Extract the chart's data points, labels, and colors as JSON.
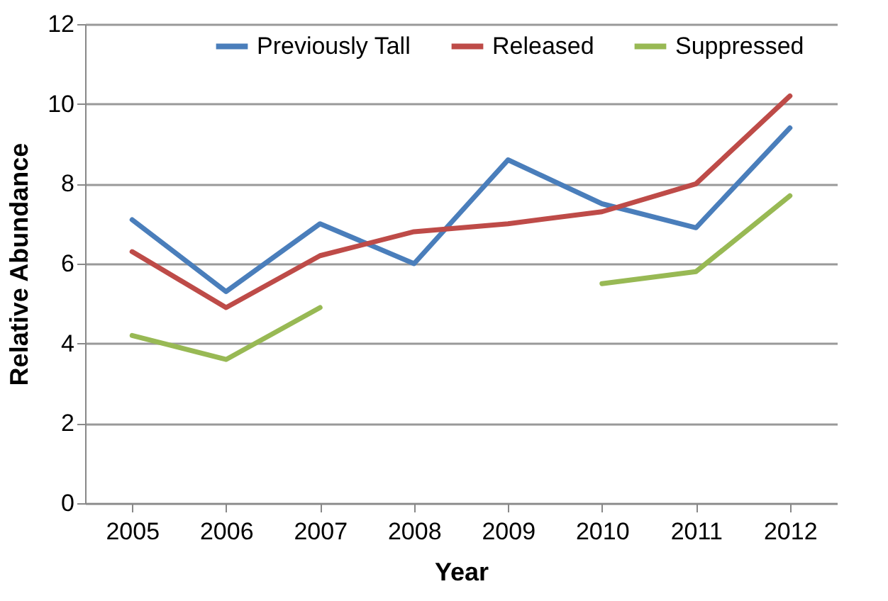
{
  "chart_data": {
    "type": "line",
    "xlabel": "Year",
    "ylabel": "Relative Abundance",
    "categories": [
      "2005",
      "2006",
      "2007",
      "2008",
      "2009",
      "2010",
      "2011",
      "2012"
    ],
    "series": [
      {
        "name": "Previously Tall",
        "color": "#4a7ebb",
        "values": [
          7.1,
          5.3,
          7.0,
          6.0,
          8.6,
          7.5,
          6.9,
          9.4
        ]
      },
      {
        "name": "Released",
        "color": "#be4b48",
        "values": [
          6.3,
          4.9,
          6.2,
          6.8,
          7.0,
          7.3,
          8.0,
          10.2
        ]
      },
      {
        "name": "Suppressed",
        "color": "#98b954",
        "values": [
          4.2,
          3.6,
          4.9,
          null,
          null,
          5.5,
          5.8,
          7.7
        ]
      }
    ],
    "ylim": [
      0,
      12
    ],
    "yticks": [
      0,
      2,
      4,
      6,
      8,
      10,
      12
    ],
    "grid": "y",
    "legend": "top",
    "marker": "none",
    "line_style": "solid"
  }
}
